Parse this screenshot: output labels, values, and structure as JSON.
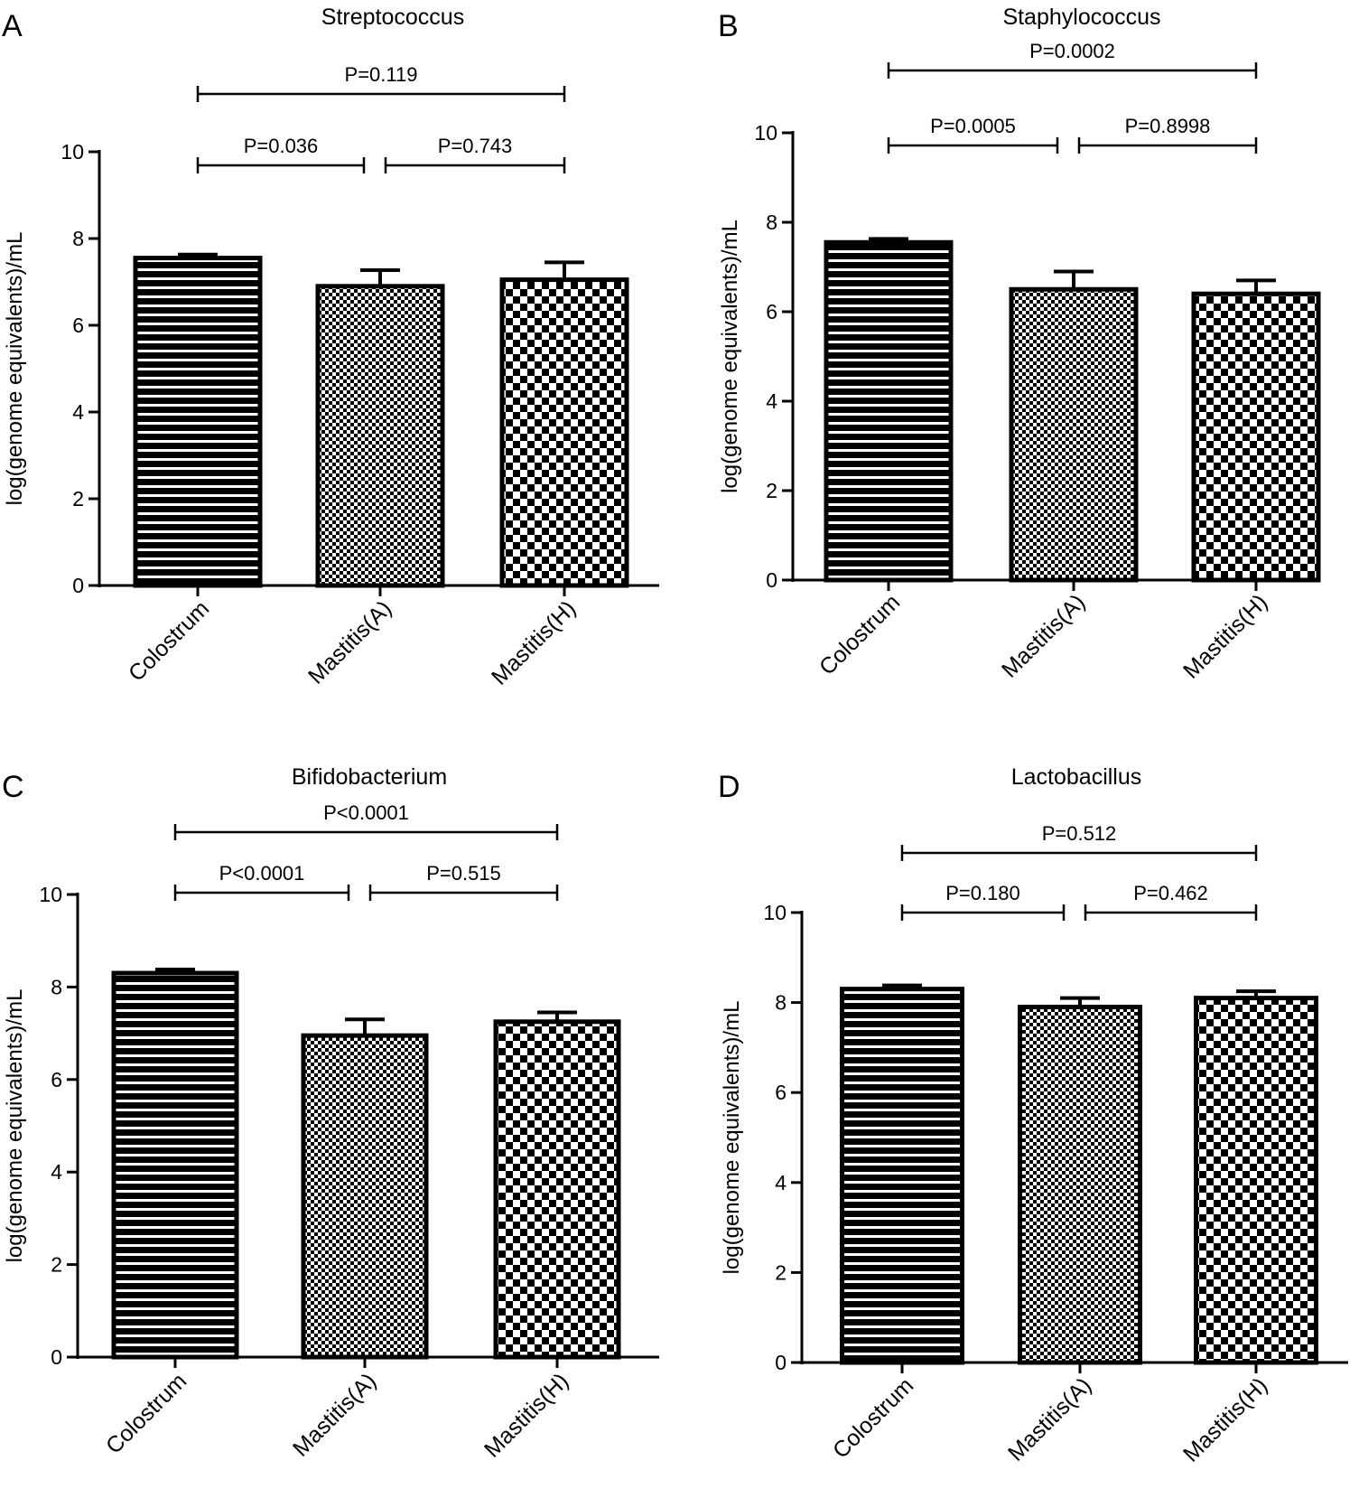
{
  "chart_data": [
    {
      "type": "bar",
      "panel": "A",
      "title": "Streptococcus",
      "ylabel": "log(genome equivalents)/mL",
      "xlabel": "",
      "categories": [
        "Colostrum",
        "Mastitis(A)",
        "Mastitis(H)"
      ],
      "values": [
        7.55,
        6.9,
        7.05
      ],
      "errors": [
        0.08,
        0.37,
        0.4
      ],
      "ylim": [
        0,
        10
      ],
      "yticks": [
        "0",
        "2",
        "4",
        "6",
        "8",
        "10"
      ],
      "comparisons": [
        {
          "from": 0,
          "to": 1,
          "label": "P=0.036",
          "level": 1
        },
        {
          "from": 1,
          "to": 2,
          "label": "P=0.743",
          "level": 1
        },
        {
          "from": 0,
          "to": 2,
          "label": "P=0.119",
          "level": 2
        }
      ]
    },
    {
      "type": "bar",
      "panel": "B",
      "title": "Staphylococcus",
      "ylabel": "log(genome equivalents)/mL",
      "xlabel": "",
      "categories": [
        "Colostrum",
        "Mastitis(A)",
        "Mastitis(H)"
      ],
      "values": [
        7.55,
        6.5,
        6.4
      ],
      "errors": [
        0.08,
        0.4,
        0.3
      ],
      "ylim": [
        0,
        10
      ],
      "yticks": [
        "0",
        "2",
        "4",
        "6",
        "8",
        "10"
      ],
      "comparisons": [
        {
          "from": 0,
          "to": 1,
          "label": "P=0.0005",
          "level": 1
        },
        {
          "from": 1,
          "to": 2,
          "label": "P=0.8998",
          "level": 1
        },
        {
          "from": 0,
          "to": 2,
          "label": "P=0.0002",
          "level": 2
        }
      ]
    },
    {
      "type": "bar",
      "panel": "C",
      "title": "Bifidobacterium",
      "ylabel": "log(genome equivalents)/mL",
      "xlabel": "",
      "categories": [
        "Colostrum",
        "Mastitis(A)",
        "Mastitis(H)"
      ],
      "values": [
        8.3,
        6.95,
        7.25
      ],
      "errors": [
        0.08,
        0.35,
        0.2
      ],
      "ylim": [
        0,
        10
      ],
      "yticks": [
        "0",
        "2",
        "4",
        "6",
        "8",
        "10"
      ],
      "comparisons": [
        {
          "from": 0,
          "to": 1,
          "label": "P<0.0001",
          "level": 1
        },
        {
          "from": 1,
          "to": 2,
          "label": "P=0.515",
          "level": 1
        },
        {
          "from": 0,
          "to": 2,
          "label": "P<0.0001",
          "level": 2
        }
      ]
    },
    {
      "type": "bar",
      "panel": "D",
      "title": "Lactobacillus",
      "ylabel": "log(genome equivalents)/mL",
      "xlabel": "",
      "categories": [
        "Colostrum",
        "Mastitis(A)",
        "Mastitis(H)"
      ],
      "values": [
        8.3,
        7.9,
        8.1
      ],
      "errors": [
        0.08,
        0.2,
        0.15
      ],
      "ylim": [
        0,
        10
      ],
      "yticks": [
        "0",
        "2",
        "4",
        "6",
        "8",
        "10"
      ],
      "comparisons": [
        {
          "from": 0,
          "to": 1,
          "label": "P=0.180",
          "level": 1
        },
        {
          "from": 1,
          "to": 2,
          "label": "P=0.462",
          "level": 1
        },
        {
          "from": 0,
          "to": 2,
          "label": "P=0.512",
          "level": 2
        }
      ]
    }
  ],
  "bar_patterns": [
    "horizontal-stripes",
    "fine-checker",
    "coarse-checker"
  ],
  "colors": {
    "ink": "#000000",
    "background": "#ffffff"
  }
}
